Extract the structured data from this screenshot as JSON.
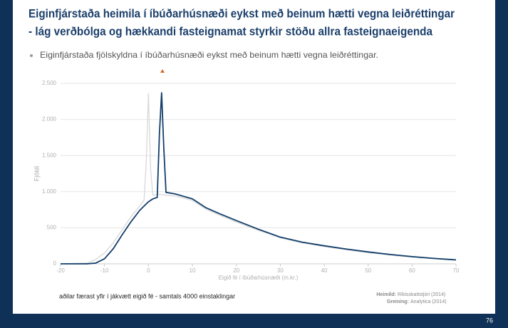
{
  "slide": {
    "title_lines": [
      "Eiginfjárstaða heimila í íbúðarhúsnæði eykst með beinum hætti vegna leiðréttingar",
      "- lág verðbólga og hækkandi fasteignamat styrkir stöðu allra fasteignaeigenda"
    ],
    "bullet": "Eiginfjárstaða fjölskyldna í íbúðarhúsnæði eykst með beinum hætti vegna leiðréttingar.",
    "footnote": "aðilar færast yfir í jákvætt eigið fé - samtals 4000 einstaklingar",
    "sources": [
      {
        "label": "Heimild:",
        "text": "Ríkisskattstjóri (2014)"
      },
      {
        "label": "Greining:",
        "text": "Analytica (2014)"
      }
    ],
    "page_number": 76
  },
  "chart_data": {
    "type": "line",
    "x_label": "Eigið fé í íbúðarhúsnæði (m.kr.)",
    "y_label": "Fjöldi",
    "xlim": [
      -20,
      70
    ],
    "xticks": [
      -20,
      -10,
      0,
      10,
      20,
      30,
      40,
      50,
      60,
      70
    ],
    "ylim": [
      0,
      2500
    ],
    "yticks": [
      0,
      500,
      {
        "value": 1000,
        "label": "1.000"
      },
      {
        "value": 1500,
        "label": "1.500"
      },
      {
        "value": 2000,
        "label": "2.000"
      },
      {
        "value": 2500,
        "label": "2.500"
      }
    ],
    "grid": true,
    "x": [
      -20,
      -14,
      -12,
      -10,
      -8,
      -6,
      -4,
      -2,
      -1,
      -0.5,
      0,
      0.5,
      1,
      2,
      2.5,
      3,
      3.5,
      4,
      6,
      10,
      13,
      16,
      20,
      25,
      30,
      35,
      40,
      45,
      50,
      55,
      60,
      65,
      70
    ],
    "series": [
      {
        "color": "#dadada",
        "values": [
          0,
          10,
          60,
          150,
          290,
          470,
          650,
          800,
          880,
          1400,
          2360,
          1300,
          950,
          960,
          965,
          960,
          955,
          950,
          940,
          880,
          760,
          680,
          580,
          465,
          360,
          290,
          240,
          195,
          155,
          120,
          92,
          70,
          50
        ]
      },
      {
        "color": "#123f6b",
        "values": [
          0,
          0,
          10,
          70,
          210,
          400,
          580,
          740,
          800,
          830,
          860,
          880,
          900,
          920,
          1800,
          2370,
          1600,
          990,
          970,
          900,
          780,
          700,
          600,
          480,
          370,
          300,
          250,
          205,
          165,
          130,
          100,
          75,
          55
        ]
      }
    ]
  }
}
